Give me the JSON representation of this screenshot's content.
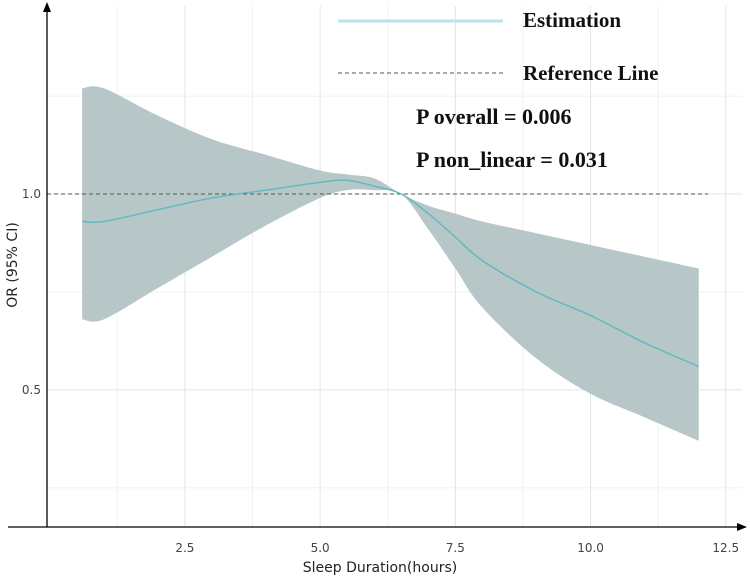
{
  "chart_data": {
    "type": "line",
    "xlabel": "Sleep Duration(hours)",
    "ylabel": "OR (95% CI)",
    "xlim": [
      -0.05,
      12.8
    ],
    "ylim": [
      0.15,
      1.48
    ],
    "x_ticks": [
      {
        "value": 2.5,
        "label": "2.5"
      },
      {
        "value": 5.0,
        "label": "5.0"
      },
      {
        "value": 7.5,
        "label": "7.5"
      },
      {
        "value": 10.0,
        "label": "10.0"
      },
      {
        "value": 12.5,
        "label": "12.5"
      }
    ],
    "y_ticks": [
      {
        "value": 0.5,
        "label": "0.5"
      },
      {
        "value": 1.0,
        "label": "1.0"
      }
    ],
    "grid": true,
    "reference_line": {
      "name": "Reference Line",
      "y": 1.0,
      "style": "dashed",
      "color": "#555555"
    },
    "series": [
      {
        "name": "Estimation",
        "color": "#5fb8c0",
        "x": [
          0.6,
          1.0,
          2.0,
          3.0,
          4.0,
          5.0,
          5.5,
          6.0,
          6.5,
          7.0,
          7.5,
          8.0,
          9.0,
          10.0,
          11.0,
          12.0
        ],
        "y": [
          0.93,
          0.93,
          0.96,
          0.99,
          1.01,
          1.03,
          1.035,
          1.02,
          1.0,
          0.95,
          0.89,
          0.83,
          0.75,
          0.69,
          0.62,
          0.56
        ],
        "lower": [
          0.68,
          0.68,
          0.76,
          0.84,
          0.92,
          0.99,
          1.01,
          1.01,
          1.0,
          0.91,
          0.81,
          0.71,
          0.58,
          0.49,
          0.43,
          0.37
        ],
        "upper": [
          1.27,
          1.27,
          1.2,
          1.14,
          1.1,
          1.06,
          1.05,
          1.04,
          1.0,
          0.97,
          0.95,
          0.93,
          0.9,
          0.87,
          0.84,
          0.81
        ]
      }
    ],
    "band_color": "#b7c7c7",
    "legend": {
      "position": "top-right",
      "items": [
        {
          "label": "Estimation",
          "style": "solid",
          "color": "#b8e3ea"
        },
        {
          "label": "Reference Line",
          "style": "dashed",
          "color": "#555555"
        }
      ]
    },
    "annotations": [
      "P overall = 0.006",
      "P non_linear = 0.031"
    ]
  }
}
